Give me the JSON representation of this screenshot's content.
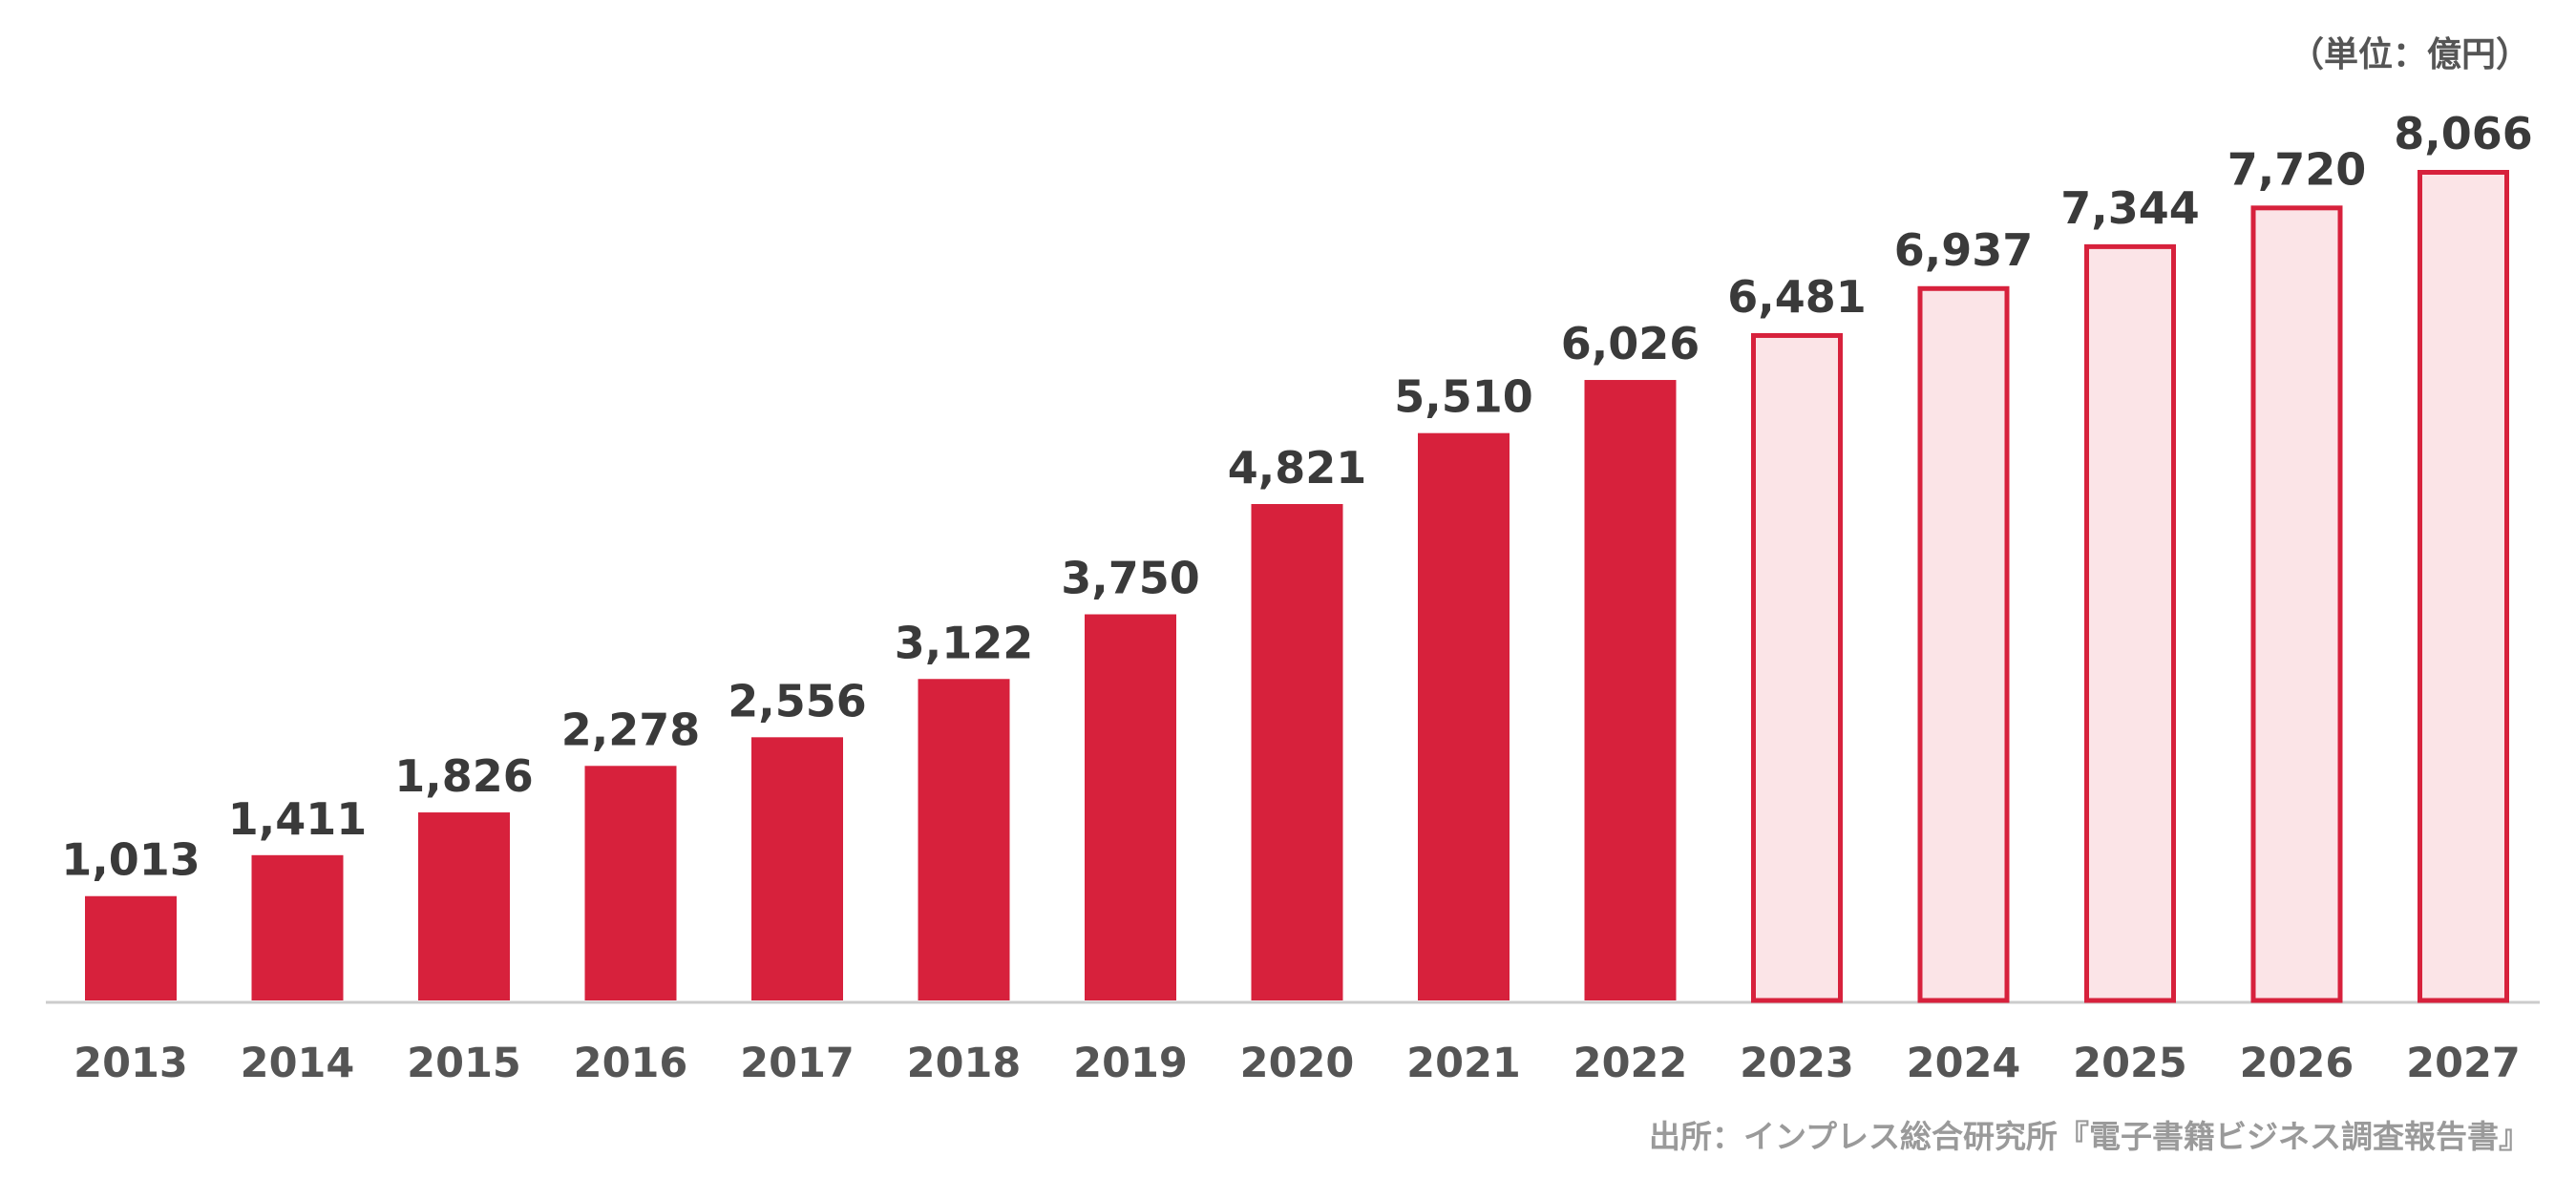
{
  "unit_label": "（単位：億円）",
  "source_label": "出所：インプレス総合研究所『電子書籍ビジネス調査報告書』",
  "colors": {
    "actual_fill": "#d7213c",
    "forecast_fill": "#fbe4e7",
    "forecast_stroke": "#d7213c",
    "value_text": "#3a3a3a",
    "tick_text": "#555555",
    "baseline": "#cccccc"
  },
  "chart_data": {
    "type": "bar",
    "categories": [
      "2013",
      "2014",
      "2015",
      "2016",
      "2017",
      "2018",
      "2019",
      "2020",
      "2021",
      "2022",
      "2023",
      "2024",
      "2025",
      "2026",
      "2027"
    ],
    "values": [
      1013,
      1411,
      1826,
      2278,
      2556,
      3122,
      3750,
      4821,
      5510,
      6026,
      6481,
      6937,
      7344,
      7720,
      8066
    ],
    "value_labels": [
      "1,013",
      "1,411",
      "1,826",
      "2,278",
      "2,556",
      "3,122",
      "3,750",
      "4,821",
      "5,510",
      "6,026",
      "6,481",
      "6,937",
      "7,344",
      "7,720",
      "8,066"
    ],
    "forecast_flags": [
      false,
      false,
      false,
      false,
      false,
      false,
      false,
      false,
      false,
      false,
      true,
      true,
      true,
      true,
      true
    ],
    "title": "",
    "xlabel": "",
    "ylabel": "",
    "ylim": [
      0,
      8066
    ],
    "grid": false,
    "legend": "none"
  }
}
